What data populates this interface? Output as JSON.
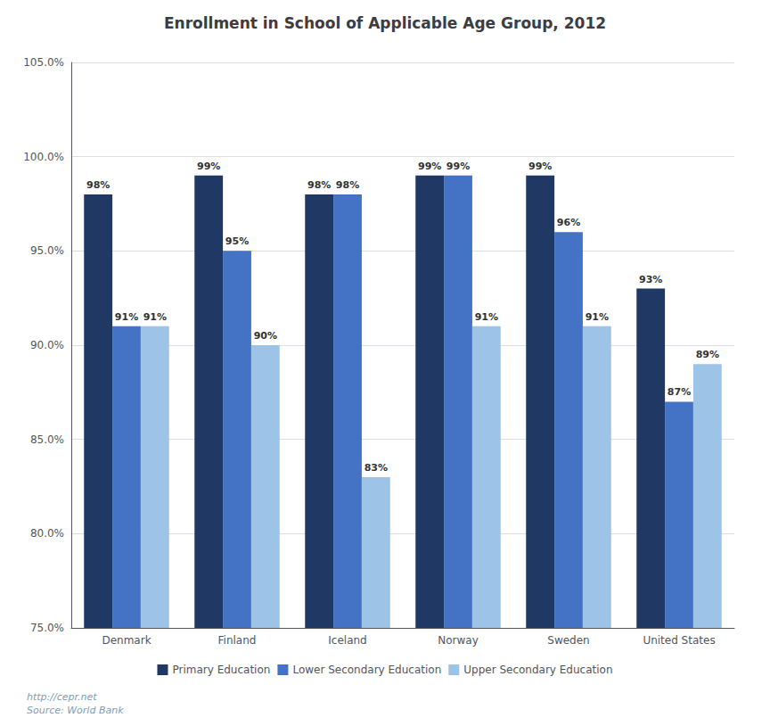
{
  "chart_data": {
    "type": "bar",
    "title": "Enrollment in School of Applicable Age Group, 2012",
    "categories": [
      "Denmark",
      "Finland",
      "Iceland",
      "Norway",
      "Sweden",
      "United States"
    ],
    "series": [
      {
        "name": "Primary Education",
        "color": "#1F3864",
        "values": [
          98,
          99,
          98,
          99,
          99,
          93
        ],
        "value_labels": [
          "98%",
          "99%",
          "98%",
          "99%",
          "99%",
          "93%"
        ]
      },
      {
        "name": "Lower Secondary Education",
        "color": "#4472C4",
        "values": [
          91,
          95,
          98,
          99,
          96,
          87
        ],
        "value_labels": [
          "91%",
          "95%",
          "98%",
          "99%",
          "96%",
          "87%"
        ]
      },
      {
        "name": "Upper Secondary Education",
        "color": "#9DC3E6",
        "values": [
          91,
          90,
          83,
          91,
          91,
          89
        ],
        "value_labels": [
          "91%",
          "90%",
          "83%",
          "91%",
          "91%",
          "89%"
        ]
      }
    ],
    "ylim": [
      75,
      105
    ],
    "yticks": [
      {
        "value": 75,
        "label": "75.0%"
      },
      {
        "value": 80,
        "label": "80.0%"
      },
      {
        "value": 85,
        "label": "85.0%"
      },
      {
        "value": 90,
        "label": "90.0%"
      },
      {
        "value": 95,
        "label": "95.0%"
      },
      {
        "value": 100,
        "label": "100.0%"
      },
      {
        "value": 105,
        "label": "105.0%"
      }
    ],
    "grid": true,
    "legend": "bottom",
    "data_labels": true,
    "annotations": [
      "http://cepr.net\nSource: World Bank"
    ]
  }
}
